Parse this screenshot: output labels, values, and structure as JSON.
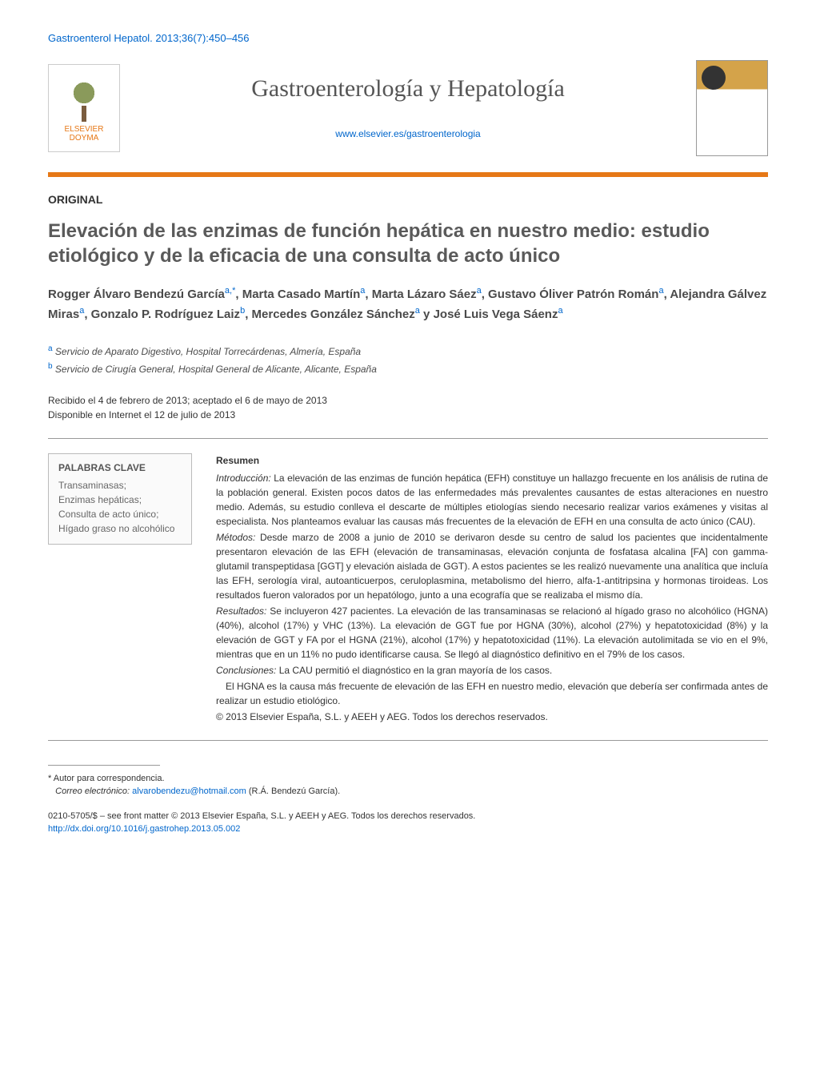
{
  "citation": "Gastroenterol Hepatol. 2013;36(7):450–456",
  "publisher": {
    "name": "ELSEVIER DOYMA"
  },
  "journal": {
    "title": "Gastroenterología y Hepatología",
    "url": "www.elsevier.es/gastroenterologia"
  },
  "article_type": "ORIGINAL",
  "title": "Elevación de las enzimas de función hepática en nuestro medio: estudio etiológico y de la eficacia de una consulta de acto único",
  "authors_html": "Rogger Álvaro Bendezú García<sup>a,*</sup>, Marta Casado Martín<sup>a</sup>, Marta Lázaro Sáez<sup>a</sup>, Gustavo Óliver Patrón Román<sup>a</sup>, Alejandra Gálvez Miras<sup>a</sup>, Gonzalo P. Rodríguez Laiz<sup>b</sup>, Mercedes González Sánchez<sup>a</sup> y José Luis Vega Sáenz<sup>a</sup>",
  "affiliations": [
    {
      "mark": "a",
      "text": "Servicio de Aparato Digestivo, Hospital Torrecárdenas, Almería, España"
    },
    {
      "mark": "b",
      "text": "Servicio de Cirugía General, Hospital General de Alicante, Alicante, España"
    }
  ],
  "dates": {
    "received_accepted": "Recibido el 4 de febrero de 2013; aceptado el 6 de mayo de 2013",
    "online": "Disponible en Internet el 12 de julio de 2013"
  },
  "keywords": {
    "head": "PALABRAS CLAVE",
    "list": "Transaminasas;\nEnzimas hepáticas;\nConsulta de acto único;\nHígado graso no alcohólico"
  },
  "abstract": {
    "head": "Resumen",
    "intro_label": "Introducción:",
    "intro": "La elevación de las enzimas de función hepática (EFH) constituye un hallazgo frecuente en los análisis de rutina de la población general. Existen pocos datos de las enfermedades más prevalentes causantes de estas alteraciones en nuestro medio. Además, su estudio conlleva el descarte de múltiples etiologías siendo necesario realizar varios exámenes y visitas al especialista. Nos planteamos evaluar las causas más frecuentes de la elevación de EFH en una consulta de acto único (CAU).",
    "methods_label": "Métodos:",
    "methods": "Desde marzo de 2008 a junio de 2010 se derivaron desde su centro de salud los pacientes que incidentalmente presentaron elevación de las EFH (elevación de transaminasas, elevación conjunta de fosfatasa alcalina [FA] con gamma-glutamil transpeptidasa [GGT] y elevación aislada de GGT). A estos pacientes se les realizó nuevamente una analítica que incluía las EFH, serología viral, autoanticuerpos, ceruloplasmina, metabolismo del hierro, alfa-1-antitripsina y hormonas tiroideas. Los resultados fueron valorados por un hepatólogo, junto a una ecografía que se realizaba el mismo día.",
    "results_label": "Resultados:",
    "results": "Se incluyeron 427 pacientes. La elevación de las transaminasas se relacionó al hígado graso no alcohólico (HGNA) (40%), alcohol (17%) y VHC (13%). La elevación de GGT fue por HGNA (30%), alcohol (27%) y hepatotoxicidad (8%) y la elevación de GGT y FA por el HGNA (21%), alcohol (17%) y hepatotoxicidad (11%). La elevación autolimitada se vio en el 9%, mientras que en un 11% no pudo identificarse causa. Se llegó al diagnóstico definitivo en el 79% de los casos.",
    "conclusions_label": "Conclusiones:",
    "conclusions1": "La CAU permitió el diagnóstico en la gran mayoría de los casos.",
    "conclusions2": "El HGNA es la causa más frecuente de elevación de las EFH en nuestro medio, elevación que debería ser confirmada antes de realizar un estudio etiológico.",
    "copyright": "© 2013 Elsevier España, S.L. y AEEH y AEG. Todos los derechos reservados."
  },
  "corresp": {
    "mark": "*",
    "label": "Autor para correspondencia.",
    "email_label": "Correo electrónico:",
    "email": "alvarobendezu@hotmail.com",
    "email_suffix": "(R.Á. Bendezú García)."
  },
  "footer": {
    "issn_line": "0210-5705/$ – see front matter © 2013 Elsevier España, S.L. y AEEH y AEG. Todos los derechos reservados.",
    "doi": "http://dx.doi.org/10.1016/j.gastrohep.2013.05.002"
  },
  "colors": {
    "accent": "#e67817",
    "link": "#0066cc",
    "text": "#333333",
    "heading": "#5a5a5a"
  }
}
